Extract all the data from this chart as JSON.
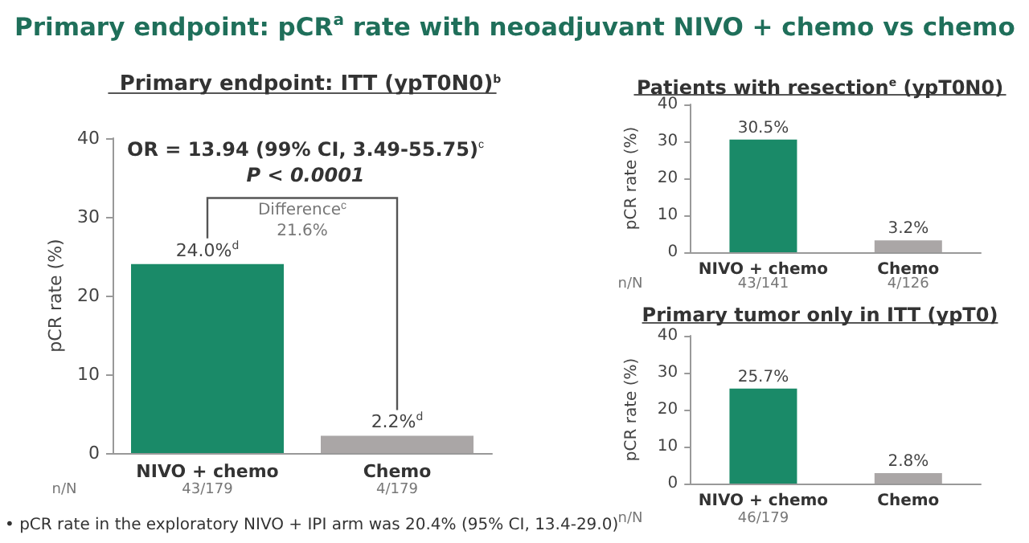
{
  "chart_data": [
    {
      "type": "bar",
      "title": "Primary endpoint: pCR$^{a}$ rate with neoadjuvant NIVO + chemo vs chemo",
      "subtitle": "Primary endpoint: ITT (ypT0N0)$^{b}$",
      "ylabel": "pCR rate (%)",
      "categories": [
        "NIVO + chemo",
        "Chemo"
      ],
      "values": [
        24.0,
        2.2
      ],
      "colors": [
        "#1a8a68",
        "#aaa6a6"
      ],
      "value_labels": [
        "24.0%$^{d}$",
        "2.2%$^{d}$"
      ],
      "ylim": [
        0,
        40
      ],
      "yticks": [
        0,
        10,
        20,
        30,
        40
      ],
      "grid": false,
      "annotations": [
        "OR = 13.94 (99% CI, 3.49-55.75)$^{c}$",
        "P < 0.0001",
        "Difference$^{c}$",
        "21.6%",
        "n/N",
        "43/179",
        "4/179",
        "• pCR rate in the exploratory NIVO + IPI arm was 20.4% (95% CI, 13.4-29.0)"
      ]
    },
    {
      "type": "bar",
      "title": "Patients with resection$^{e}$ (ypT0N0)",
      "ylabel": "pCR rate (%)",
      "categories": [
        "NIVO + chemo",
        "Chemo"
      ],
      "values": [
        30.5,
        3.2
      ],
      "colors": [
        "#1a8a68",
        "#aaa6a6"
      ],
      "value_labels": [
        "30.5%",
        "3.2%"
      ],
      "ylim": [
        0,
        40
      ],
      "yticks": [
        0,
        10,
        20,
        30,
        40
      ],
      "grid": false,
      "annotations": [
        "n/N",
        "43/141",
        "4/126"
      ]
    },
    {
      "type": "bar",
      "title": "Primary tumor only in ITT (ypT0)",
      "ylabel": "pCR rate (%)",
      "categories": [
        "NIVO + chemo",
        "Chemo"
      ],
      "values": [
        25.7,
        2.8
      ],
      "colors": [
        "#1a8a68",
        "#aaa6a6"
      ],
      "value_labels": [
        "25.7%",
        "2.8%"
      ],
      "ylim": [
        0,
        40
      ],
      "yticks": [
        0,
        10,
        20,
        30,
        40
      ],
      "grid": false,
      "annotations": [
        "n/N",
        "46/179"
      ]
    }
  ]
}
